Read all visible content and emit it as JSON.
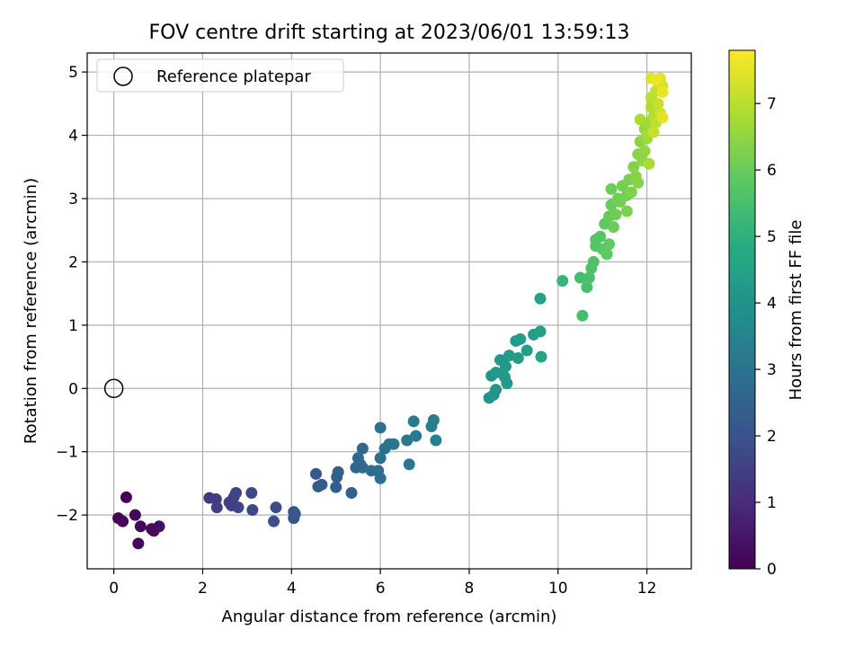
{
  "chart_data": {
    "type": "scatter",
    "title": "FOV centre drift starting at 2023/06/01 13:59:13",
    "xlabel": "Angular distance from reference (arcmin)",
    "ylabel": "Rotation from reference (arcmin)",
    "xlim": [
      -0.6,
      13.0
    ],
    "ylim": [
      -2.85,
      5.3
    ],
    "xticks": [
      0,
      2,
      4,
      6,
      8,
      10,
      12
    ],
    "yticks": [
      -2,
      -1,
      0,
      1,
      2,
      3,
      4,
      5
    ],
    "grid": true,
    "legend": {
      "position": "top-left",
      "entries": [
        "Reference platepar"
      ]
    },
    "reference_point": {
      "x": 0.0,
      "y": 0.0,
      "label": "Reference platepar"
    },
    "colorbar": {
      "label": "Hours from first FF file",
      "min": 0,
      "max": 7.8,
      "ticks": [
        0,
        1,
        2,
        3,
        4,
        5,
        6,
        7
      ],
      "colormap": "viridis"
    },
    "points": [
      {
        "x": 0.28,
        "y": -1.72,
        "c": 0.05
      },
      {
        "x": 0.1,
        "y": -2.05,
        "c": 0.08
      },
      {
        "x": 0.2,
        "y": -2.1,
        "c": 0.12
      },
      {
        "x": 0.48,
        "y": -2.0,
        "c": 0.15
      },
      {
        "x": 0.6,
        "y": -2.18,
        "c": 0.18
      },
      {
        "x": 0.55,
        "y": -2.45,
        "c": 0.2
      },
      {
        "x": 0.9,
        "y": -2.25,
        "c": 0.25
      },
      {
        "x": 1.02,
        "y": -2.18,
        "c": 0.3
      },
      {
        "x": 0.85,
        "y": -2.22,
        "c": 0.28
      },
      {
        "x": 2.15,
        "y": -1.73,
        "c": 1.3
      },
      {
        "x": 2.3,
        "y": -1.75,
        "c": 1.4
      },
      {
        "x": 2.32,
        "y": -1.88,
        "c": 1.45
      },
      {
        "x": 2.6,
        "y": -1.8,
        "c": 1.5
      },
      {
        "x": 2.7,
        "y": -1.72,
        "c": 1.55
      },
      {
        "x": 2.75,
        "y": -1.65,
        "c": 1.6
      },
      {
        "x": 2.8,
        "y": -1.88,
        "c": 1.65
      },
      {
        "x": 2.65,
        "y": -1.85,
        "c": 1.52
      },
      {
        "x": 3.1,
        "y": -1.65,
        "c": 1.7
      },
      {
        "x": 3.12,
        "y": -1.92,
        "c": 1.75
      },
      {
        "x": 3.65,
        "y": -1.88,
        "c": 1.85
      },
      {
        "x": 3.6,
        "y": -2.1,
        "c": 1.9
      },
      {
        "x": 4.05,
        "y": -1.95,
        "c": 2.0
      },
      {
        "x": 4.05,
        "y": -2.05,
        "c": 2.05
      },
      {
        "x": 4.08,
        "y": -1.98,
        "c": 2.1
      },
      {
        "x": 4.55,
        "y": -1.35,
        "c": 2.15
      },
      {
        "x": 4.6,
        "y": -1.55,
        "c": 2.2
      },
      {
        "x": 4.68,
        "y": -1.52,
        "c": 2.25
      },
      {
        "x": 5.0,
        "y": -1.56,
        "c": 2.3
      },
      {
        "x": 5.02,
        "y": -1.4,
        "c": 2.35
      },
      {
        "x": 5.05,
        "y": -1.32,
        "c": 2.4
      },
      {
        "x": 5.35,
        "y": -1.65,
        "c": 2.5
      },
      {
        "x": 5.45,
        "y": -1.25,
        "c": 2.55
      },
      {
        "x": 5.55,
        "y": -1.2,
        "c": 2.6
      },
      {
        "x": 5.5,
        "y": -1.1,
        "c": 2.62
      },
      {
        "x": 5.6,
        "y": -0.95,
        "c": 2.65
      },
      {
        "x": 5.6,
        "y": -1.25,
        "c": 2.68
      },
      {
        "x": 5.8,
        "y": -1.3,
        "c": 2.75
      },
      {
        "x": 5.95,
        "y": -1.3,
        "c": 2.8
      },
      {
        "x": 6.0,
        "y": -1.42,
        "c": 2.85
      },
      {
        "x": 6.0,
        "y": -1.1,
        "c": 2.88
      },
      {
        "x": 6.1,
        "y": -0.95,
        "c": 2.9
      },
      {
        "x": 6.0,
        "y": -0.62,
        "c": 2.95
      },
      {
        "x": 6.2,
        "y": -0.88,
        "c": 3.0
      },
      {
        "x": 6.3,
        "y": -0.88,
        "c": 3.05
      },
      {
        "x": 6.6,
        "y": -0.82,
        "c": 3.1
      },
      {
        "x": 6.65,
        "y": -1.2,
        "c": 3.15
      },
      {
        "x": 6.75,
        "y": -0.52,
        "c": 3.2
      },
      {
        "x": 6.8,
        "y": -0.75,
        "c": 3.22
      },
      {
        "x": 7.15,
        "y": -0.6,
        "c": 3.3
      },
      {
        "x": 7.2,
        "y": -0.5,
        "c": 3.35
      },
      {
        "x": 7.25,
        "y": -0.82,
        "c": 3.4
      },
      {
        "x": 8.45,
        "y": -0.15,
        "c": 4.0
      },
      {
        "x": 8.55,
        "y": -0.1,
        "c": 4.05
      },
      {
        "x": 8.6,
        "y": -0.02,
        "c": 4.08
      },
      {
        "x": 8.5,
        "y": 0.2,
        "c": 4.1
      },
      {
        "x": 8.6,
        "y": 0.25,
        "c": 4.12
      },
      {
        "x": 8.7,
        "y": 0.45,
        "c": 4.15
      },
      {
        "x": 8.75,
        "y": 0.25,
        "c": 4.18
      },
      {
        "x": 8.8,
        "y": 0.18,
        "c": 4.2
      },
      {
        "x": 8.85,
        "y": 0.08,
        "c": 4.22
      },
      {
        "x": 8.82,
        "y": 0.35,
        "c": 4.25
      },
      {
        "x": 8.9,
        "y": 0.52,
        "c": 4.28
      },
      {
        "x": 9.05,
        "y": 0.75,
        "c": 4.3
      },
      {
        "x": 9.1,
        "y": 0.48,
        "c": 4.32
      },
      {
        "x": 9.15,
        "y": 0.78,
        "c": 4.35
      },
      {
        "x": 9.3,
        "y": 0.6,
        "c": 4.38
      },
      {
        "x": 9.45,
        "y": 0.85,
        "c": 4.42
      },
      {
        "x": 9.6,
        "y": 0.9,
        "c": 4.45
      },
      {
        "x": 9.6,
        "y": 1.42,
        "c": 4.5
      },
      {
        "x": 9.62,
        "y": 0.5,
        "c": 4.55
      },
      {
        "x": 10.1,
        "y": 1.7,
        "c": 5.2
      },
      {
        "x": 10.5,
        "y": 1.75,
        "c": 5.4
      },
      {
        "x": 10.55,
        "y": 1.15,
        "c": 5.45
      },
      {
        "x": 10.65,
        "y": 1.6,
        "c": 5.5
      },
      {
        "x": 10.7,
        "y": 1.75,
        "c": 5.55
      },
      {
        "x": 10.75,
        "y": 1.9,
        "c": 5.6
      },
      {
        "x": 10.8,
        "y": 2.0,
        "c": 5.65
      },
      {
        "x": 10.85,
        "y": 2.25,
        "c": 5.7
      },
      {
        "x": 10.85,
        "y": 2.35,
        "c": 5.72
      },
      {
        "x": 10.95,
        "y": 2.4,
        "c": 5.75
      },
      {
        "x": 11.0,
        "y": 2.2,
        "c": 5.8
      },
      {
        "x": 11.05,
        "y": 2.6,
        "c": 5.85
      },
      {
        "x": 11.1,
        "y": 2.12,
        "c": 5.88
      },
      {
        "x": 11.15,
        "y": 2.28,
        "c": 5.9
      },
      {
        "x": 11.15,
        "y": 2.72,
        "c": 5.95
      },
      {
        "x": 11.2,
        "y": 2.9,
        "c": 6.0
      },
      {
        "x": 11.25,
        "y": 2.55,
        "c": 6.02
      },
      {
        "x": 11.2,
        "y": 3.15,
        "c": 6.05
      },
      {
        "x": 11.3,
        "y": 2.75,
        "c": 6.08
      },
      {
        "x": 11.35,
        "y": 3.0,
        "c": 6.1
      },
      {
        "x": 11.4,
        "y": 2.95,
        "c": 6.12
      },
      {
        "x": 11.45,
        "y": 3.2,
        "c": 6.15
      },
      {
        "x": 11.55,
        "y": 3.05,
        "c": 6.2
      },
      {
        "x": 11.55,
        "y": 2.8,
        "c": 6.22
      },
      {
        "x": 11.6,
        "y": 3.3,
        "c": 6.25
      },
      {
        "x": 11.65,
        "y": 3.1,
        "c": 6.28
      },
      {
        "x": 11.7,
        "y": 3.5,
        "c": 6.3
      },
      {
        "x": 11.75,
        "y": 3.35,
        "c": 6.35
      },
      {
        "x": 11.8,
        "y": 3.25,
        "c": 6.38
      },
      {
        "x": 11.8,
        "y": 3.7,
        "c": 6.4
      },
      {
        "x": 11.85,
        "y": 3.9,
        "c": 6.45
      },
      {
        "x": 11.9,
        "y": 3.6,
        "c": 6.5
      },
      {
        "x": 11.95,
        "y": 3.75,
        "c": 6.55
      },
      {
        "x": 11.95,
        "y": 4.1,
        "c": 6.6
      },
      {
        "x": 12.0,
        "y": 3.95,
        "c": 6.65
      },
      {
        "x": 12.05,
        "y": 4.2,
        "c": 6.7
      },
      {
        "x": 12.0,
        "y": 4.0,
        "c": 6.75
      },
      {
        "x": 12.05,
        "y": 3.55,
        "c": 6.8
      },
      {
        "x": 11.85,
        "y": 4.25,
        "c": 6.85
      },
      {
        "x": 12.1,
        "y": 4.45,
        "c": 6.9
      },
      {
        "x": 12.15,
        "y": 4.3,
        "c": 6.95
      },
      {
        "x": 12.1,
        "y": 4.6,
        "c": 7.0
      },
      {
        "x": 12.2,
        "y": 4.2,
        "c": 7.05
      },
      {
        "x": 12.2,
        "y": 4.7,
        "c": 7.1
      },
      {
        "x": 12.15,
        "y": 4.05,
        "c": 7.15
      },
      {
        "x": 12.25,
        "y": 4.5,
        "c": 7.2
      },
      {
        "x": 12.3,
        "y": 4.35,
        "c": 7.25
      },
      {
        "x": 12.25,
        "y": 4.85,
        "c": 7.3
      },
      {
        "x": 12.35,
        "y": 4.78,
        "c": 7.35
      },
      {
        "x": 12.1,
        "y": 4.9,
        "c": 7.4
      },
      {
        "x": 12.3,
        "y": 4.9,
        "c": 7.45
      },
      {
        "x": 12.35,
        "y": 4.28,
        "c": 7.5
      },
      {
        "x": 12.35,
        "y": 4.68,
        "c": 7.55
      },
      {
        "x": 12.2,
        "y": 4.88,
        "c": 7.6
      }
    ]
  }
}
